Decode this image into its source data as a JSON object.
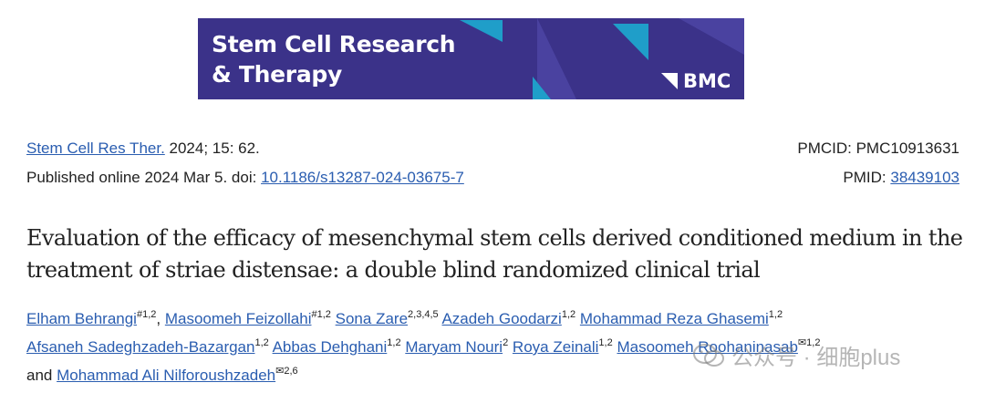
{
  "banner": {
    "line1": "Stem Cell Research",
    "line2": "& Therapy",
    "publisher": "BMC",
    "bg_color": "#3b3289",
    "accent_color": "#1f9ec9"
  },
  "citation": {
    "journal_link": "Stem Cell Res Ther.",
    "journal_rest": " 2024; 15: 62.",
    "published_prefix": "Published online 2024 Mar 5. doi: ",
    "doi": "10.1186/s13287-024-03675-7",
    "pmcid_label": "PMCID: PMC10913631",
    "pmid_label": "PMID: ",
    "pmid": "38439103"
  },
  "title": "Evaluation of the efficacy of mesenchymal stem cells derived conditioned medium in the treatment of striae distensae: a double blind randomized clinical trial",
  "authors": [
    {
      "name": "Elham Behrangi",
      "sup": "#1,2",
      "sep": ", "
    },
    {
      "name": "Masoomeh Feizollahi",
      "sup": "#1,2",
      "sep": " "
    },
    {
      "name": "Sona Zare",
      "sup": "2,3,4,5",
      "sep": " "
    },
    {
      "name": "Azadeh Goodarzi",
      "sup": "1,2",
      "sep": " "
    },
    {
      "name": "Mohammad Reza Ghasemi",
      "sup": "1,2",
      "sep": " "
    },
    {
      "name": "Afsaneh Sadeghzadeh-Bazargan",
      "sup": "1,2",
      "sep": " "
    },
    {
      "name": "Abbas Dehghani",
      "sup": "1,2",
      "sep": " "
    },
    {
      "name": "Maryam Nouri",
      "sup": "2",
      "sep": " "
    },
    {
      "name": "Roya Zeinali",
      "sup": "1,2",
      "sep": " "
    },
    {
      "name": "Masoomeh Roohaninasab",
      "sup": "✉1,2",
      "sep": " "
    },
    {
      "name": "Mohammad Ali Nilforoushzadeh",
      "sup": "✉2,6",
      "sep": ""
    }
  ],
  "authors_and": "and ",
  "watermark": {
    "icon": "wechat-icon",
    "text": "公众号 · 细胞plus"
  }
}
